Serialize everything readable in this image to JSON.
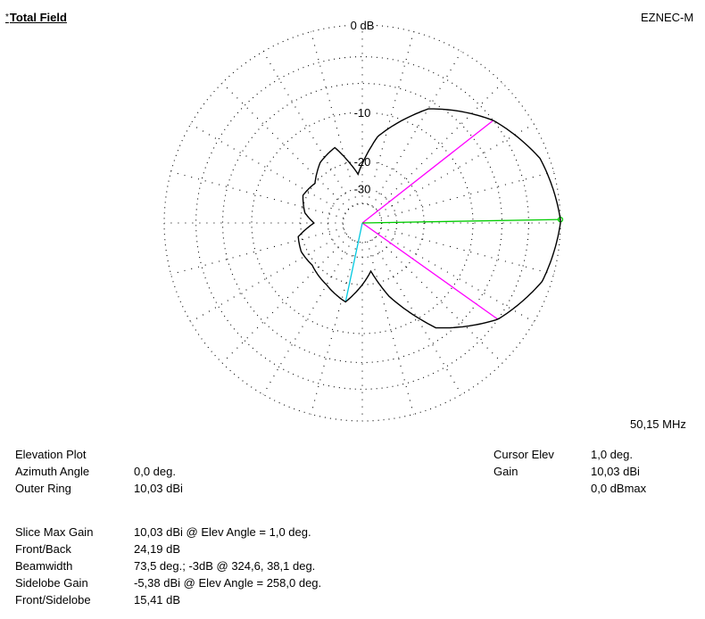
{
  "header": {
    "title": "Total Field",
    "marker": "*",
    "program": "EZNEC-M"
  },
  "frequency": "50,15 MHz",
  "info_left": [
    {
      "label": "Elevation Plot",
      "value": ""
    },
    {
      "label": "Azimuth Angle",
      "value": "0,0 deg."
    },
    {
      "label": "Outer Ring",
      "value": "10,03 dBi"
    }
  ],
  "info_right": [
    {
      "label": "Cursor Elev",
      "value": "1,0 deg."
    },
    {
      "label": "Gain",
      "value": "10,03 dBi"
    },
    {
      "label": "",
      "value": "0,0 dBmax"
    }
  ],
  "stats": [
    {
      "label": "Slice Max Gain",
      "value": "10,03 dBi @ Elev Angle = 1,0 deg."
    },
    {
      "label": "Front/Back",
      "value": "24,19 dB"
    },
    {
      "label": "Beamwidth",
      "value": "73,5 deg.; -3dB @ 324,6, 38,1 deg."
    },
    {
      "label": "Sidelobe Gain",
      "value": "-5,38 dBi @ Elev Angle = 258,0 deg."
    },
    {
      "label": "Front/Sidelobe",
      "value": "15,41 dB"
    }
  ],
  "chart_data": {
    "type": "polar",
    "plot": "elevation",
    "ring_labels": [
      "0 dB",
      "-10",
      "-20",
      "-30"
    ],
    "ring_values_dB": [
      0,
      -10,
      -20,
      -30
    ],
    "scale": "ARRL log",
    "max_gain_angle_deg": 1.0,
    "beamwidth_edges_deg": [
      324.6,
      38.1
    ],
    "sidelobe_angle_deg": 258.0,
    "cursor_angle_deg": 1.0,
    "colors": {
      "pattern": "#000000",
      "grid": "#000000",
      "cursor": "#00cc00",
      "beamwidth": "#ff00ff",
      "sidelobe": "#00c8e0"
    },
    "pattern_points": [
      {
        "angle_deg": 1,
        "gain_dBmax": 0.0
      },
      {
        "angle_deg": 20,
        "gain_dBmax": -0.8
      },
      {
        "angle_deg": 38.1,
        "gain_dBmax": -3.0
      },
      {
        "angle_deg": 60,
        "gain_dBmax": -7.0
      },
      {
        "angle_deg": 80,
        "gain_dBmax": -14.0
      },
      {
        "angle_deg": 95,
        "gain_dBmax": -24.0
      },
      {
        "angle_deg": 110,
        "gain_dBmax": -15.5
      },
      {
        "angle_deg": 125,
        "gain_dBmax": -17.0
      },
      {
        "angle_deg": 140,
        "gain_dBmax": -20.0
      },
      {
        "angle_deg": 155,
        "gain_dBmax": -19.0
      },
      {
        "angle_deg": 170,
        "gain_dBmax": -21.0
      },
      {
        "angle_deg": 180,
        "gain_dBmax": -24.2
      },
      {
        "angle_deg": 192,
        "gain_dBmax": -19.0
      },
      {
        "angle_deg": 205,
        "gain_dBmax": -18.5
      },
      {
        "angle_deg": 220,
        "gain_dBmax": -19.0
      },
      {
        "angle_deg": 240,
        "gain_dBmax": -17.5
      },
      {
        "angle_deg": 258,
        "gain_dBmax": -15.4
      },
      {
        "angle_deg": 270,
        "gain_dBmax": -20.0
      },
      {
        "angle_deg": 280,
        "gain_dBmax": -24.0
      },
      {
        "angle_deg": 290,
        "gain_dBmax": -16.0
      },
      {
        "angle_deg": 305,
        "gain_dBmax": -7.5
      },
      {
        "angle_deg": 324.6,
        "gain_dBmax": -3.0
      },
      {
        "angle_deg": 342,
        "gain_dBmax": -0.8
      },
      {
        "angle_deg": 360,
        "gain_dBmax": 0.0
      }
    ]
  }
}
